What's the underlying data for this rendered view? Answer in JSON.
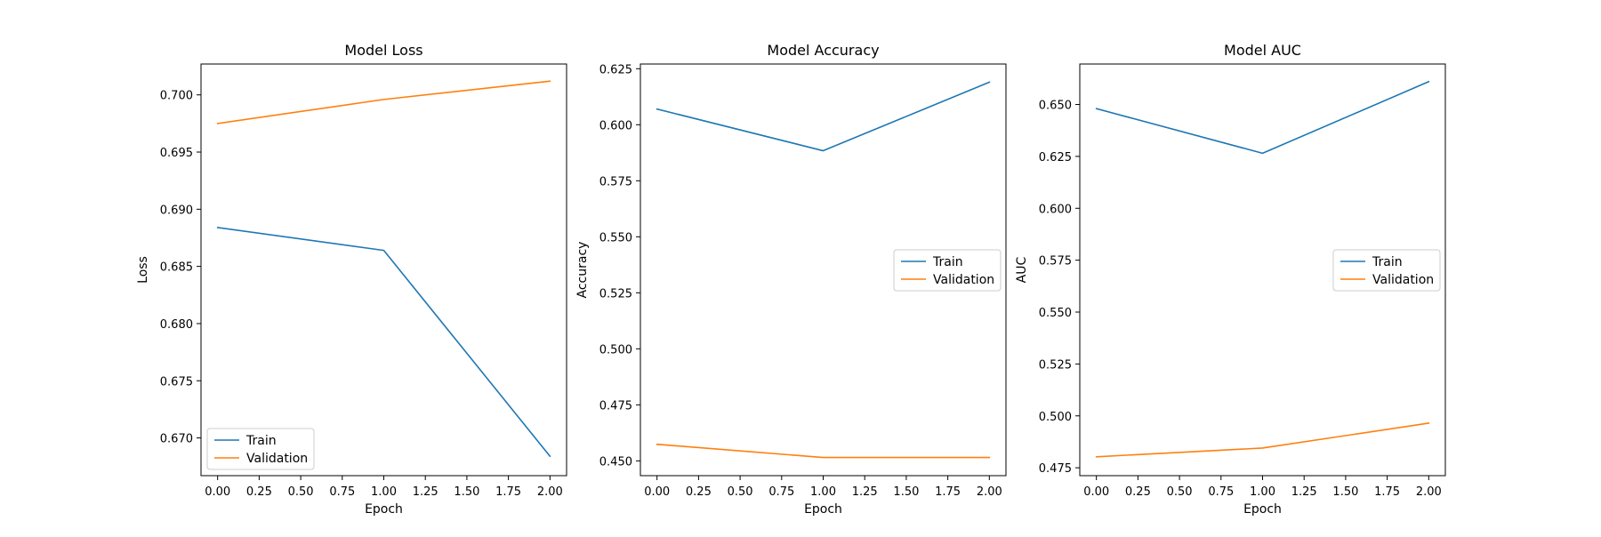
{
  "chart_data": [
    {
      "type": "line",
      "title": "Model Loss",
      "xlabel": "Epoch",
      "ylabel": "Loss",
      "x": [
        0,
        1,
        2
      ],
      "xticks": [
        "0.00",
        "0.25",
        "0.50",
        "0.75",
        "1.00",
        "1.25",
        "1.50",
        "1.75",
        "2.00"
      ],
      "yticks": [
        "0.670",
        "0.675",
        "0.680",
        "0.685",
        "0.690",
        "0.695",
        "0.700"
      ],
      "xlim": [
        -0.1,
        2.1
      ],
      "ylim": [
        0.6667,
        0.7027
      ],
      "legend_position": "lower left",
      "series": [
        {
          "name": "Train",
          "color": "#1f77b4",
          "values": [
            0.6884,
            0.6864,
            0.6684
          ]
        },
        {
          "name": "Validation",
          "color": "#ff7f0e",
          "values": [
            0.6975,
            0.6996,
            0.7012
          ]
        }
      ]
    },
    {
      "type": "line",
      "title": "Model Accuracy",
      "xlabel": "Epoch",
      "ylabel": "Accuracy",
      "x": [
        0,
        1,
        2
      ],
      "xticks": [
        "0.00",
        "0.25",
        "0.50",
        "0.75",
        "1.00",
        "1.25",
        "1.50",
        "1.75",
        "2.00"
      ],
      "yticks": [
        "0.450",
        "0.475",
        "0.500",
        "0.525",
        "0.550",
        "0.575",
        "0.600",
        "0.625"
      ],
      "xlim": [
        -0.1,
        2.1
      ],
      "ylim": [
        0.4434,
        0.6271
      ],
      "legend_position": "center right",
      "series": [
        {
          "name": "Train",
          "color": "#1f77b4",
          "values": [
            0.607,
            0.5884,
            0.619
          ]
        },
        {
          "name": "Validation",
          "color": "#ff7f0e",
          "values": [
            0.4574,
            0.4515,
            0.4515
          ]
        }
      ]
    },
    {
      "type": "line",
      "title": "Model AUC",
      "xlabel": "Epoch",
      "ylabel": "AUC",
      "x": [
        0,
        1,
        2
      ],
      "xticks": [
        "0.00",
        "0.25",
        "0.50",
        "0.75",
        "1.00",
        "1.25",
        "1.50",
        "1.75",
        "2.00"
      ],
      "yticks": [
        "0.475",
        "0.500",
        "0.525",
        "0.550",
        "0.575",
        "0.600",
        "0.625",
        "0.650"
      ],
      "xlim": [
        -0.1,
        2.1
      ],
      "ylim": [
        0.4712,
        0.6695
      ],
      "legend_position": "center right",
      "series": [
        {
          "name": "Train",
          "color": "#1f77b4",
          "values": [
            0.648,
            0.6265,
            0.661
          ]
        },
        {
          "name": "Validation",
          "color": "#ff7f0e",
          "values": [
            0.4803,
            0.4845,
            0.4965
          ]
        }
      ]
    }
  ]
}
